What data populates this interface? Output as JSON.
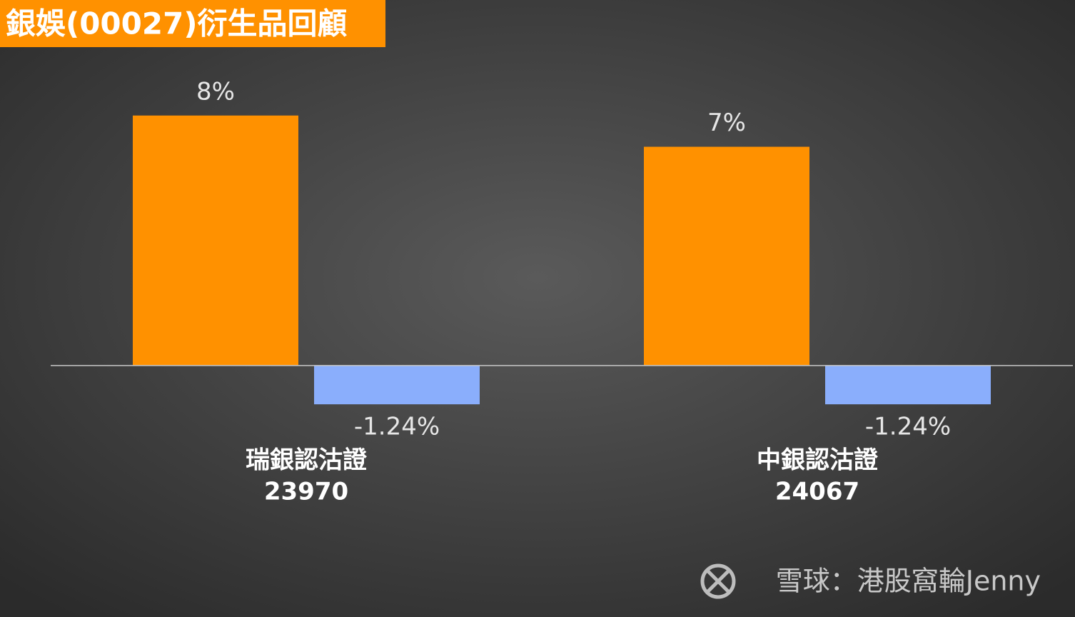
{
  "chart_data": {
    "type": "bar",
    "title": "銀娛(00027)衍生品回顧",
    "categories": [
      [
        "瑞銀認沽證",
        "23970"
      ],
      [
        "中銀認沽證",
        "24067"
      ]
    ],
    "series": [
      {
        "color": "#ff9100",
        "values": [
          8,
          7
        ],
        "value_labels": [
          "8%",
          "7%"
        ]
      },
      {
        "color": "#8aaefc",
        "values": [
          -1.24,
          -1.24
        ],
        "value_labels": [
          "-1.24%",
          "-1.24%"
        ]
      }
    ],
    "ylim": [
      -8,
      9
    ],
    "watermark": "雪球：港股窩輪Jenny"
  }
}
